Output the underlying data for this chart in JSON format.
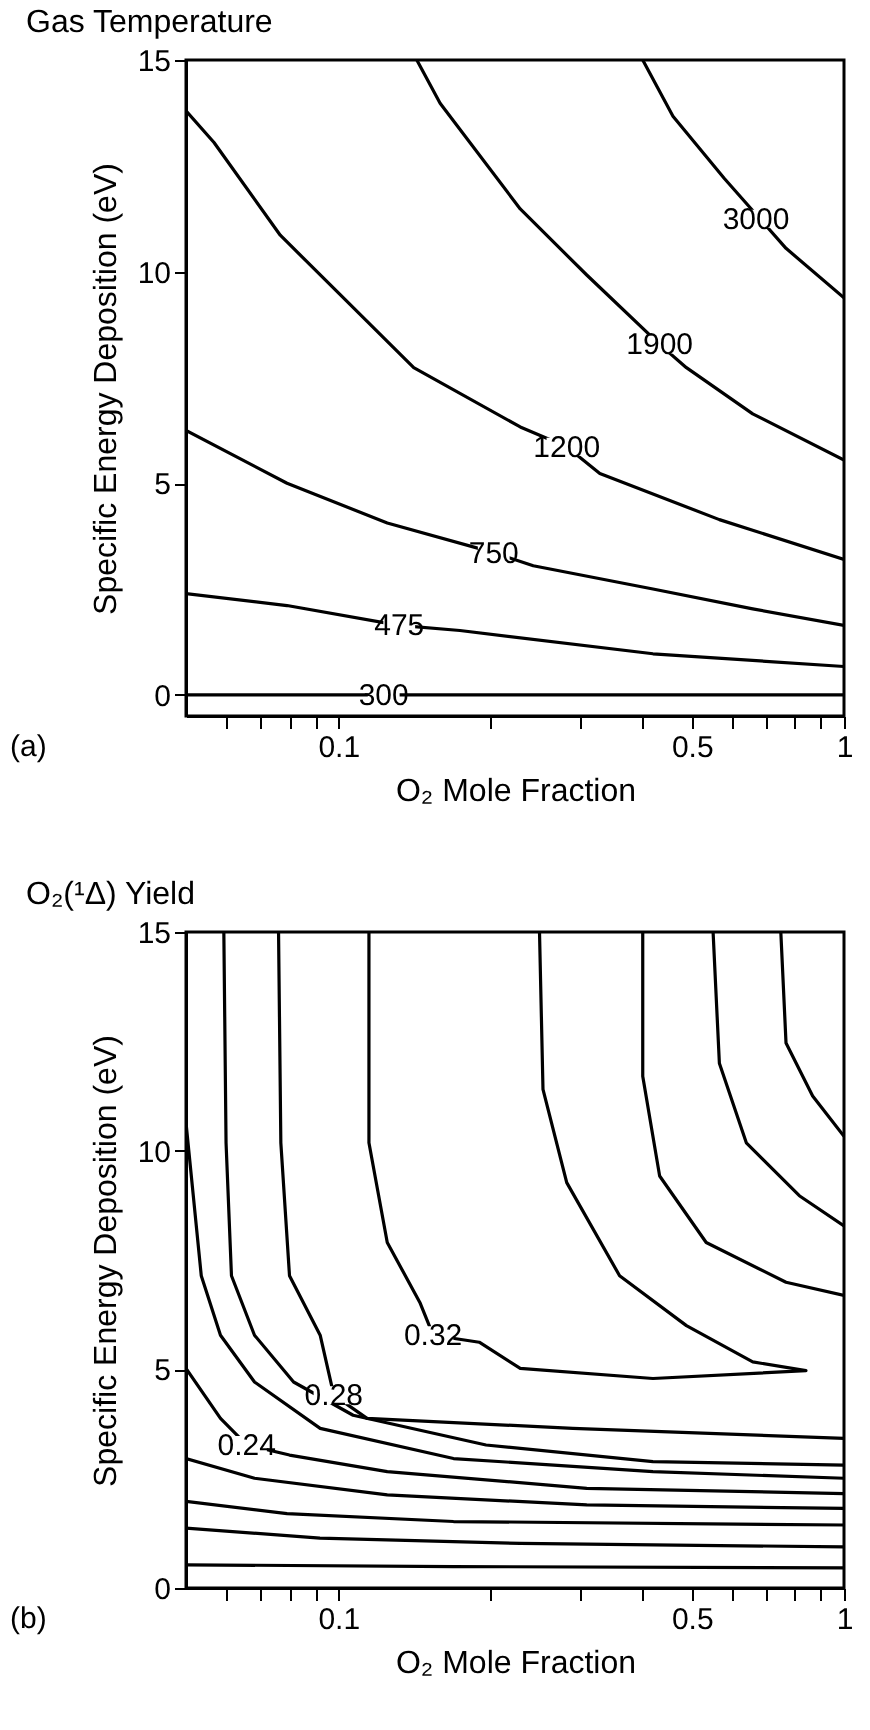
{
  "chart_data": [
    {
      "type": "line",
      "title": "Gas Temperature",
      "xlabel": "O₂ Mole Fraction",
      "ylabel": "Specific Energy Deposition (eV)",
      "log": "x",
      "grid": false,
      "xlim": [
        0.05,
        1
      ],
      "ylim": [
        -0.5,
        15
      ],
      "xticks": [
        {
          "value": 0.06,
          "label": null
        },
        {
          "value": 0.07,
          "label": null
        },
        {
          "value": 0.08,
          "label": null
        },
        {
          "value": 0.09,
          "label": null
        },
        0.1,
        {
          "value": 0.2,
          "label": null
        },
        {
          "value": 0.3,
          "label": null
        },
        {
          "value": 0.4,
          "label": null
        },
        0.5,
        {
          "value": 0.6,
          "label": null
        },
        {
          "value": 0.7,
          "label": null
        },
        {
          "value": 0.8,
          "label": null
        },
        {
          "value": 0.9,
          "label": null
        },
        1
      ],
      "yticks": [
        0,
        5,
        10,
        15
      ],
      "series": [
        {
          "color": "#000000",
          "x": [
            0.05,
            0.123,
            1
          ],
          "values": [
            0,
            0,
            0
          ]
        },
        {
          "color": "#000000",
          "x": [
            0.05,
            0.0792,
            0.132,
            0.174,
            0.419,
            1
          ],
          "values": [
            2.39,
            2.11,
            1.64,
            1.52,
            0.97,
            0.67
          ]
        },
        {
          "color": "#000000",
          "x": [
            0.05,
            0.0792,
            0.125,
            0.203,
            0.243,
            0.419,
            0.66,
            1
          ],
          "values": [
            6.25,
            5.0,
            4.06,
            3.36,
            3.05,
            2.5,
            2.03,
            1.64
          ]
        },
        {
          "color": "#000000",
          "x": [
            0.05,
            0.0568,
            0.0768,
            0.101,
            0.141,
            0.229,
            0.283,
            0.329,
            0.567,
            1
          ],
          "values": [
            13.8,
            13.05,
            10.86,
            9.45,
            7.73,
            6.33,
            5.86,
            5.23,
            4.14,
            3.2
          ]
        },
        {
          "color": "#000000",
          "x": [
            0.143,
            0.159,
            0.229,
            0.31,
            0.432,
            0.488,
            0.66,
            1
          ],
          "values": [
            15,
            13.98,
            11.48,
            9.92,
            8.28,
            7.73,
            6.64,
            5.55
          ]
        },
        {
          "color": "#000000",
          "x": [
            0.4,
            0.459,
            0.58,
            0.768,
            1
          ],
          "values": [
            15,
            13.67,
            12.2,
            10.55,
            9.38
          ]
        }
      ],
      "annotations": [
        {
          "text": "300",
          "x": 0.123,
          "y": 0
        },
        {
          "text": "475",
          "x": 0.132,
          "y": 1.64
        },
        {
          "text": "750",
          "x": 0.203,
          "y": 3.36
        },
        {
          "text": "1200",
          "x": 0.283,
          "y": 5.86
        },
        {
          "text": "1900",
          "x": 0.432,
          "y": 8.28
        },
        {
          "text": "3000",
          "x": 0.67,
          "y": 11.25
        },
        "(a)"
      ]
    },
    {
      "type": "line",
      "title": "O₂(¹Δ) Yield",
      "xlabel": "O₂ Mole Fraction",
      "ylabel": "Specific Energy Deposition (eV)",
      "log": "x",
      "grid": false,
      "xlim": [
        0.05,
        1
      ],
      "ylim": [
        0,
        15
      ],
      "xticks": [
        {
          "value": 0.06,
          "label": null
        },
        {
          "value": 0.07,
          "label": null
        },
        {
          "value": 0.08,
          "label": null
        },
        {
          "value": 0.09,
          "label": null
        },
        0.1,
        {
          "value": 0.2,
          "label": null
        },
        {
          "value": 0.3,
          "label": null
        },
        {
          "value": 0.4,
          "label": null
        },
        0.5,
        {
          "value": 0.6,
          "label": null
        },
        {
          "value": 0.7,
          "label": null
        },
        {
          "value": 0.8,
          "label": null
        },
        {
          "value": 0.9,
          "label": null
        },
        1
      ],
      "yticks": [
        0,
        5,
        10,
        15
      ],
      "series": [
        {
          "color": "#000000",
          "x": [
            0.05,
            0.169,
            1
          ],
          "values": [
            0.53,
            0.49,
            0.46
          ]
        },
        {
          "color": "#000000",
          "x": [
            0.05,
            0.092,
            0.229,
            1
          ],
          "values": [
            1.37,
            1.14,
            1.02,
            0.94
          ]
        },
        {
          "color": "#000000",
          "x": [
            0.05,
            0.0792,
            0.169,
            1
          ],
          "values": [
            1.98,
            1.7,
            1.52,
            1.44
          ]
        },
        {
          "color": "#000000",
          "x": [
            0.05,
            0.0683,
            0.125,
            0.31,
            1
          ],
          "values": [
            2.96,
            2.51,
            2.13,
            1.9,
            1.82
          ]
        },
        {
          "color": "#000000",
          "x": [
            0.05,
            0.0585,
            0.0659,
            0.0801,
            0.125,
            0.31,
            1
          ],
          "values": [
            5.02,
            3.88,
            3.27,
            3.04,
            2.66,
            2.28,
            2.16
          ]
        },
        {
          "color": "#000000",
          "x": [
            0.05,
            0.0536,
            0.0585,
            0.0683,
            0.0921,
            0.169,
            0.419,
            1
          ],
          "values": [
            10.64,
            7.14,
            5.78,
            4.71,
            3.65,
            2.96,
            2.66,
            2.51
          ]
        },
        {
          "color": "#000000",
          "x": [
            0.0594,
            0.06,
            0.0615,
            0.0683,
            0.0816,
            0.107,
            0.196,
            0.419,
            1
          ],
          "values": [
            15,
            10.18,
            7.14,
            5.78,
            4.71,
            3.95,
            3.27,
            2.89,
            2.81
          ]
        },
        {
          "color": "#000000",
          "x": [
            0.0762,
            0.077,
            0.0801,
            0.0921,
            0.098,
            0.114,
            0.291,
            1
          ],
          "values": [
            15,
            10.18,
            7.14,
            5.78,
            4.41,
            3.88,
            3.65,
            3.42
          ]
        },
        {
          "color": "#000000",
          "x": [
            0.115,
            0.115,
            0.125,
            0.145,
            0.154,
            0.19,
            0.229,
            0.419,
            0.841,
            0.66,
            0.488,
            0.36,
            0.283,
            0.254,
            0.25
          ],
          "values": [
            15,
            10.18,
            7.9,
            6.53,
            5.78,
            5.62,
            5.02,
            4.79,
            4.97,
            5.17,
            6.0,
            7.14,
            9.27,
            11.4,
            15
          ]
        },
        {
          "color": "#000000",
          "x": [
            0.4,
            0.4,
            0.432,
            0.534,
            0.768,
            1
          ],
          "values": [
            15,
            11.7,
            9.42,
            7.9,
            6.99,
            6.69
          ]
        },
        {
          "color": "#000000",
          "x": [
            0.551,
            0.567,
            0.641,
            0.816,
            1
          ],
          "values": [
            15,
            12.0,
            10.18,
            8.97,
            8.28
          ]
        },
        {
          "color": "#000000",
          "x": [
            0.75,
            0.768,
            0.867,
            1
          ],
          "values": [
            15,
            12.46,
            11.25,
            10.33
          ]
        }
      ],
      "annotations": [
        {
          "text": "0.24",
          "x": 0.0659,
          "y": 3.27
        },
        {
          "text": "0.28",
          "x": 0.098,
          "y": 4.41
        },
        {
          "text": "0.32",
          "x": 0.154,
          "y": 5.78
        },
        "(b)"
      ]
    }
  ]
}
